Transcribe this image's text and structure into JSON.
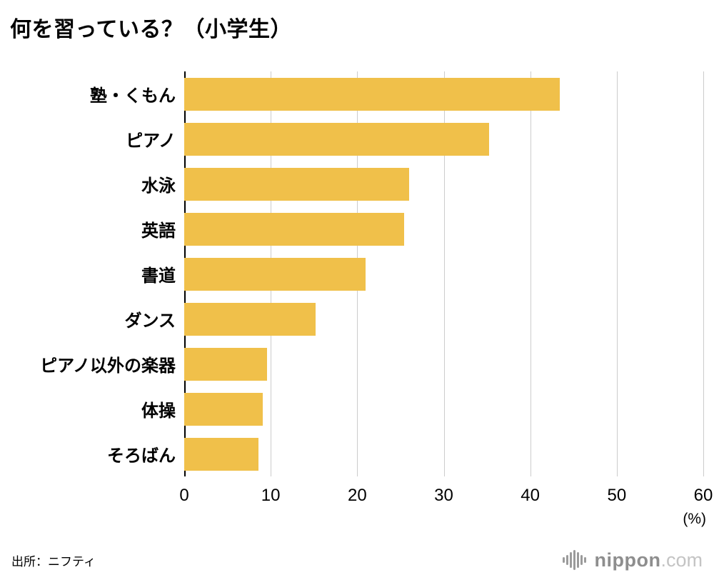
{
  "chart_data": {
    "type": "bar",
    "orientation": "horizontal",
    "title": "何を習っている？（小学生）",
    "categories": [
      "塾・くもん",
      "ピアノ",
      "水泳",
      "英語",
      "書道",
      "ダンス",
      "ピアノ以外の楽器",
      "体操",
      "そろばん"
    ],
    "values": [
      43.4,
      35.2,
      26.0,
      25.4,
      21.0,
      15.2,
      9.6,
      9.1,
      8.6
    ],
    "xlim": [
      0,
      60
    ],
    "x_ticks": [
      0,
      10,
      20,
      30,
      40,
      50,
      60
    ],
    "unit_label": "(%)",
    "bar_color": "#F0C04A",
    "gridline_color": "#CCCCCC",
    "axis_color": "#000000",
    "grid": true,
    "legend": false
  },
  "footer": {
    "source": "出所：ニフティ",
    "logo_main": "nippon",
    "logo_suffix": ".com"
  }
}
